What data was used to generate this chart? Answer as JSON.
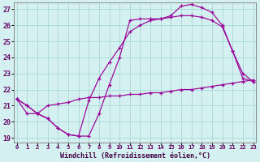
{
  "xlabel": "Windchill (Refroidissement éolien,°C)",
  "bg_color": "#d4f0f0",
  "grid_color": "#a8d8d8",
  "line_color": "#990099",
  "xlim_min": -0.3,
  "xlim_max": 23.3,
  "ylim_min": 18.7,
  "ylim_max": 27.4,
  "yticks": [
    19,
    20,
    21,
    22,
    23,
    24,
    25,
    26,
    27
  ],
  "xticks": [
    0,
    1,
    2,
    3,
    4,
    5,
    6,
    7,
    8,
    9,
    10,
    11,
    12,
    13,
    14,
    15,
    16,
    17,
    18,
    19,
    20,
    21,
    22,
    23
  ],
  "curve_a_x": [
    0,
    1,
    2,
    3,
    4,
    5,
    6,
    7,
    8,
    9,
    10,
    11,
    12,
    13,
    14,
    15,
    16,
    17,
    18,
    19,
    20,
    21,
    22,
    23
  ],
  "curve_a_y": [
    21.4,
    21.0,
    20.5,
    20.2,
    19.6,
    19.2,
    19.1,
    19.1,
    20.5,
    22.3,
    24.0,
    26.3,
    26.4,
    26.4,
    26.4,
    26.6,
    27.2,
    27.3,
    27.1,
    26.8,
    26.0,
    24.4,
    22.7,
    22.5
  ],
  "curve_b_x": [
    0,
    1,
    2,
    3,
    4,
    5,
    6,
    7,
    8,
    9,
    10,
    11,
    12,
    13,
    14,
    15,
    16,
    17,
    18,
    19,
    20,
    21,
    22,
    23
  ],
  "curve_b_y": [
    21.4,
    21.0,
    20.5,
    20.2,
    19.6,
    19.2,
    19.1,
    21.3,
    22.7,
    23.7,
    24.6,
    25.6,
    26.0,
    26.3,
    26.4,
    26.5,
    26.6,
    26.6,
    26.5,
    26.3,
    25.9,
    24.4,
    23.0,
    22.5
  ],
  "curve_c_x": [
    0,
    1,
    2,
    3,
    4,
    5,
    6,
    7,
    8,
    9,
    10,
    11,
    12,
    13,
    14,
    15,
    16,
    17,
    18,
    19,
    20,
    21,
    22,
    23
  ],
  "curve_c_y": [
    21.4,
    20.5,
    20.5,
    21.0,
    21.1,
    21.2,
    21.4,
    21.5,
    21.5,
    21.6,
    21.6,
    21.7,
    21.7,
    21.8,
    21.8,
    21.9,
    22.0,
    22.0,
    22.1,
    22.2,
    22.3,
    22.4,
    22.5,
    22.6
  ]
}
